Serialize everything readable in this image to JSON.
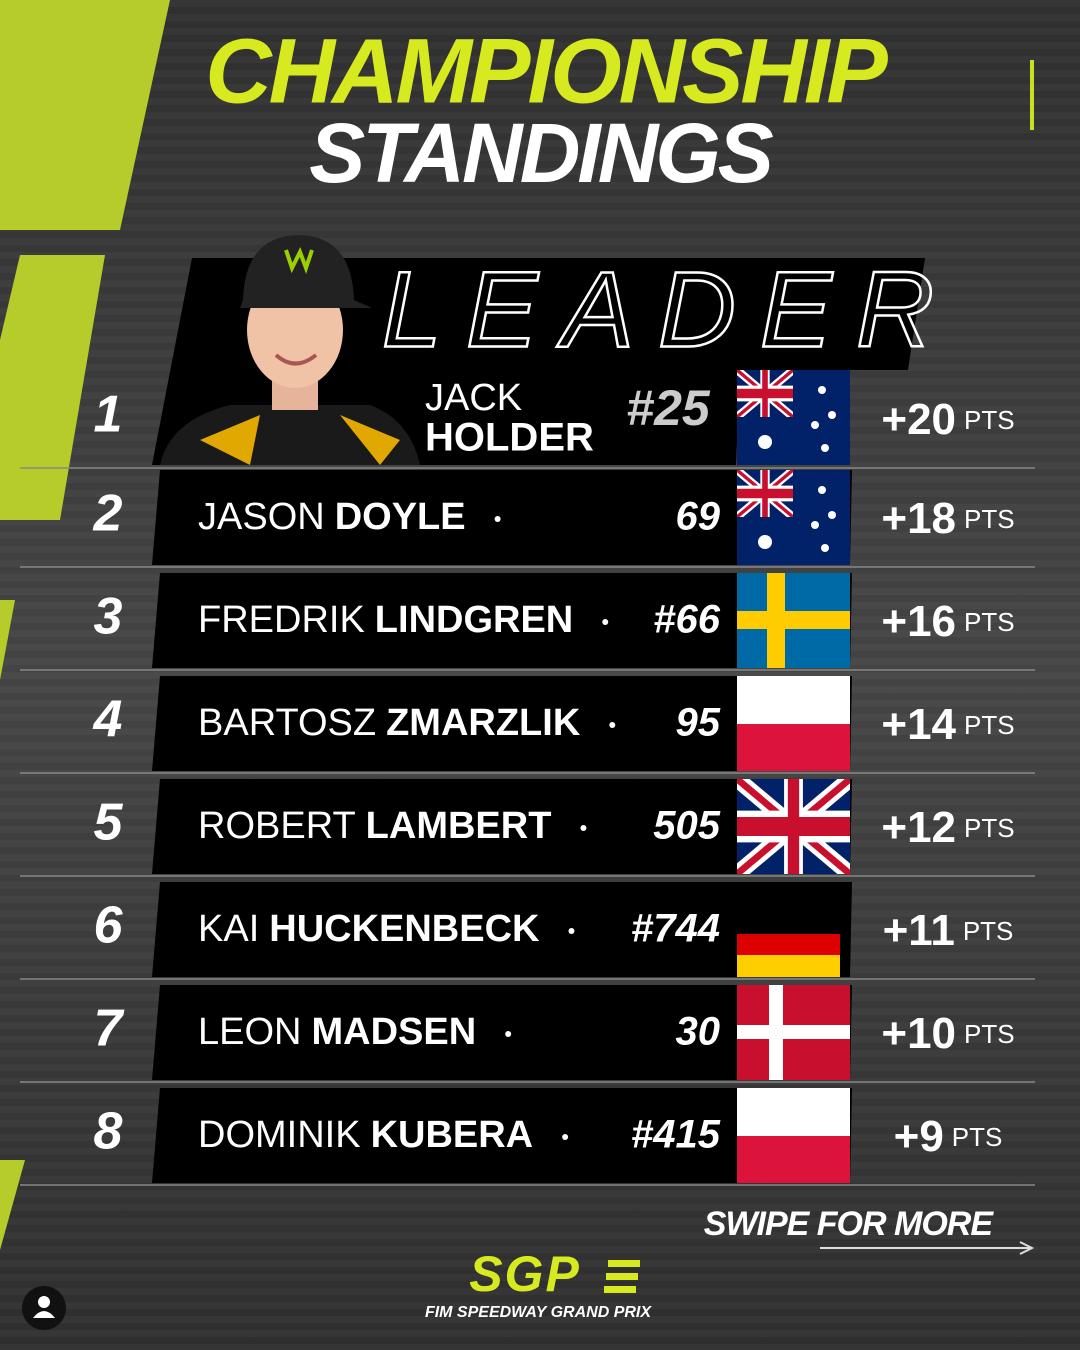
{
  "header": {
    "title_line1": "CHAMPIONSHIP",
    "title_line2": "STANDINGS"
  },
  "leader_label": "LEADER",
  "standings": [
    {
      "position": "1",
      "first_name": "JACK",
      "last_name": "HOLDER",
      "number": "#25",
      "points": "+20",
      "unit": "PTS"
    },
    {
      "position": "2",
      "first_name": "JASON",
      "last_name": "DOYLE",
      "number": "69",
      "points": "+18",
      "unit": "PTS"
    },
    {
      "position": "3",
      "first_name": "FREDRIK",
      "last_name": "LINDGREN",
      "number": "#66",
      "points": "+16",
      "unit": "PTS"
    },
    {
      "position": "4",
      "first_name": "BARTOSZ",
      "last_name": "ZMARZLIK",
      "number": "95",
      "points": "+14",
      "unit": "PTS"
    },
    {
      "position": "5",
      "first_name": "ROBERT",
      "last_name": "LAMBERT",
      "number": "505",
      "points": "+12",
      "unit": "PTS"
    },
    {
      "position": "6",
      "first_name": "KAI",
      "last_name": "HUCKENBECK",
      "number": "#744",
      "points": "+11",
      "unit": "PTS"
    },
    {
      "position": "7",
      "first_name": "LEON",
      "last_name": "MADSEN",
      "number": "30",
      "points": "+10",
      "unit": "PTS"
    },
    {
      "position": "8",
      "first_name": "DOMINIK",
      "last_name": "KUBERA",
      "number": "#415",
      "points": "+9",
      "unit": "PTS"
    }
  ],
  "footer": {
    "swipe": "SWIPE FOR MORE",
    "logo": "SGP",
    "logo_caption": "FIM SPEEDWAY GRAND PRIX"
  }
}
